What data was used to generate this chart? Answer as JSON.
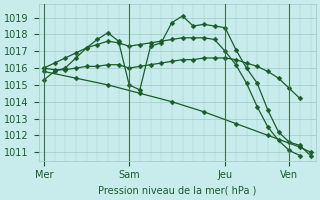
{
  "background_color": "#c8ecec",
  "grid_color": "#a0c8c8",
  "line_color": "#1a5c28",
  "xlabel": "Pression niveau de la mer( hPa )",
  "ylim": [
    1010.5,
    1019.8
  ],
  "yticks": [
    1011,
    1012,
    1013,
    1014,
    1015,
    1016,
    1017,
    1018,
    1019
  ],
  "day_labels": [
    "Mer",
    "Sam",
    "Jeu",
    "Ven"
  ],
  "day_positions": [
    0,
    8,
    17,
    23
  ],
  "xlim": [
    -0.5,
    25.5
  ],
  "series_diagonal": {
    "x": [
      0,
      3,
      6,
      9,
      12,
      15,
      18,
      21,
      24,
      25
    ],
    "y": [
      1015.8,
      1015.4,
      1015.0,
      1014.5,
      1014.0,
      1013.4,
      1012.7,
      1012.0,
      1011.3,
      1011.0
    ]
  },
  "series_flat": {
    "x": [
      0,
      1,
      2,
      3,
      4,
      5,
      6,
      7,
      8,
      9,
      10,
      11,
      12,
      13,
      14,
      15,
      16,
      17,
      18,
      19,
      20,
      21,
      22,
      23,
      24
    ],
    "y": [
      1016.0,
      1015.9,
      1015.9,
      1016.0,
      1016.1,
      1016.1,
      1016.2,
      1016.2,
      1016.0,
      1016.1,
      1016.2,
      1016.3,
      1016.4,
      1016.5,
      1016.5,
      1016.6,
      1016.6,
      1016.6,
      1016.5,
      1016.3,
      1016.1,
      1015.8,
      1015.4,
      1014.8,
      1014.2
    ]
  },
  "series_peaked": {
    "x": [
      0,
      1,
      2,
      3,
      4,
      5,
      6,
      7,
      8,
      9,
      10,
      11,
      12,
      13,
      14,
      15,
      16,
      17,
      18,
      19,
      20,
      21,
      22,
      23,
      24,
      25
    ],
    "y": [
      1015.3,
      1015.8,
      1016.0,
      1016.6,
      1017.2,
      1017.7,
      1018.1,
      1017.6,
      1015.0,
      1014.7,
      1017.3,
      1017.5,
      1018.7,
      1019.1,
      1018.5,
      1018.6,
      1018.5,
      1018.4,
      1017.1,
      1016.0,
      1015.1,
      1013.5,
      1012.2,
      1011.6,
      1011.4,
      1010.8
    ]
  },
  "series_medium": {
    "x": [
      0,
      1,
      2,
      3,
      4,
      5,
      6,
      7,
      8,
      9,
      10,
      11,
      12,
      13,
      14,
      15,
      16,
      17,
      18,
      19,
      20,
      21,
      22,
      23,
      24
    ],
    "y": [
      1016.0,
      1016.3,
      1016.6,
      1016.9,
      1017.2,
      1017.4,
      1017.6,
      1017.5,
      1017.3,
      1017.4,
      1017.5,
      1017.6,
      1017.7,
      1017.8,
      1017.8,
      1017.8,
      1017.7,
      1017.0,
      1016.2,
      1015.1,
      1013.7,
      1012.5,
      1011.7,
      1011.1,
      1010.8
    ]
  }
}
